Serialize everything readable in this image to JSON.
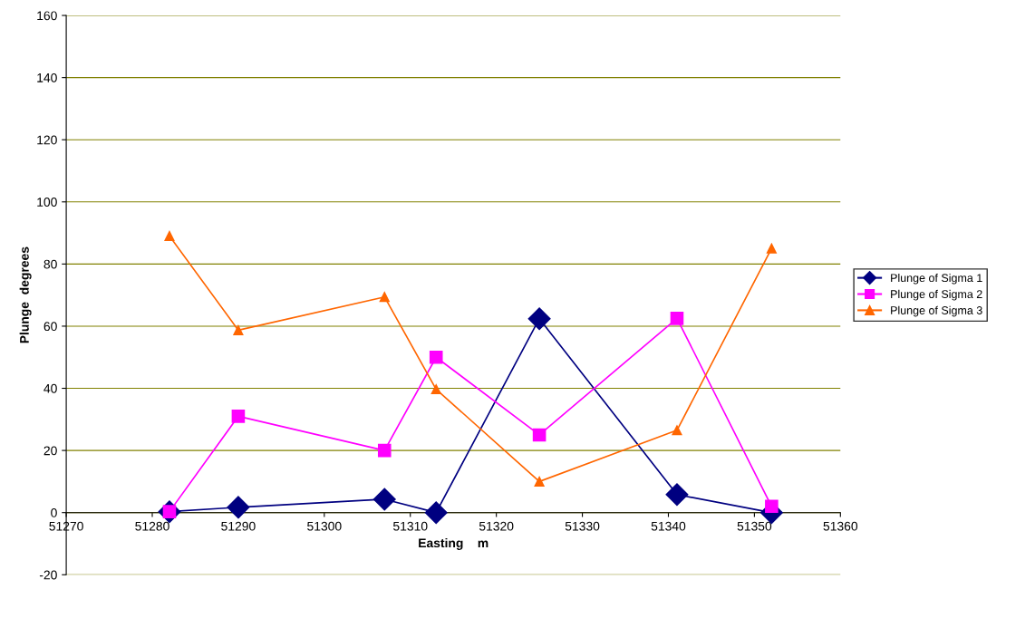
{
  "chart_data": {
    "type": "line",
    "xlabel": "Easting    m",
    "ylabel": "Plunge  degrees",
    "x": [
      51282,
      51290,
      51307,
      51313,
      51325,
      51341,
      51352
    ],
    "series": [
      {
        "name": "Plunge of Sigma 1",
        "color": "#000080",
        "marker": "diamond",
        "values": [
          0.3,
          1.7,
          4.3,
          0,
          62.4,
          5.8,
          0
        ]
      },
      {
        "name": "Plunge of Sigma 2",
        "color": "#ff00ff",
        "marker": "square",
        "values": [
          0.3,
          31,
          20,
          50,
          25,
          62.5,
          2
        ]
      },
      {
        "name": "Plunge of Sigma 3",
        "color": "#ff6600",
        "marker": "triangle",
        "values": [
          89,
          58.7,
          69.4,
          39.7,
          10,
          26.5,
          85
        ]
      }
    ],
    "xlim": [
      51270,
      51360
    ],
    "xticks": [
      51270,
      51280,
      51290,
      51300,
      51310,
      51320,
      51330,
      51340,
      51350,
      51360
    ],
    "ylim": [
      -20,
      160
    ],
    "yticks": [
      -20,
      0,
      20,
      40,
      60,
      80,
      100,
      120,
      140,
      160
    ],
    "grid": "y",
    "legend": "right",
    "line_style": "solid"
  }
}
